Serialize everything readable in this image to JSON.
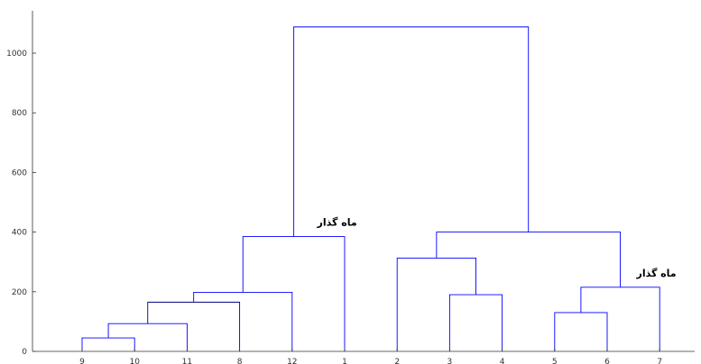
{
  "chart_data": {
    "type": "dendrogram",
    "title": "",
    "xlabel": "",
    "ylabel": "",
    "ylim": [
      0,
      1100
    ],
    "leaf_order": [
      "9",
      "10",
      "11",
      "8",
      "12",
      "1",
      "2",
      "3",
      "4",
      "5",
      "6",
      "7"
    ],
    "y_ticks": [
      0,
      200,
      400,
      600,
      800,
      1000
    ],
    "grid": false,
    "link_color": "#0000ff",
    "merges": [
      {
        "left": "9",
        "right": "10",
        "height": 45,
        "color": "#0000ff"
      },
      {
        "left": "9,10",
        "right": "11",
        "height": 93,
        "color": "#0000ff"
      },
      {
        "left": "9,10,11",
        "right": "8",
        "height": 165,
        "color": "#000080"
      },
      {
        "left": "9,10,11,8",
        "right": "12",
        "height": 198,
        "color": "#0000ff"
      },
      {
        "left": "9,10,11,8,12",
        "right": "1",
        "height": 385,
        "color": "#0000ff"
      },
      {
        "left": "3",
        "right": "4",
        "height": 190,
        "color": "#0000ff"
      },
      {
        "left": "2",
        "right": "3,4",
        "height": 313,
        "color": "#0000ff"
      },
      {
        "left": "5",
        "right": "6",
        "height": 130,
        "color": "#0000ff"
      },
      {
        "left": "5,6",
        "right": "7",
        "height": 215,
        "color": "#0000ff"
      },
      {
        "left": "2,3,4",
        "right": "5,6,7",
        "height": 400,
        "color": "#0000ff"
      },
      {
        "left": "9,10,11,8,12,1",
        "right": "2,3,4,5,6,7",
        "height": 1088,
        "color": "#0000ff"
      }
    ],
    "annotations": [
      {
        "text": "ماه گذار",
        "near_merge": "9,10,11,8,12,1"
      },
      {
        "text": "ماه گذار",
        "near_merge": "5,6,7"
      }
    ]
  }
}
